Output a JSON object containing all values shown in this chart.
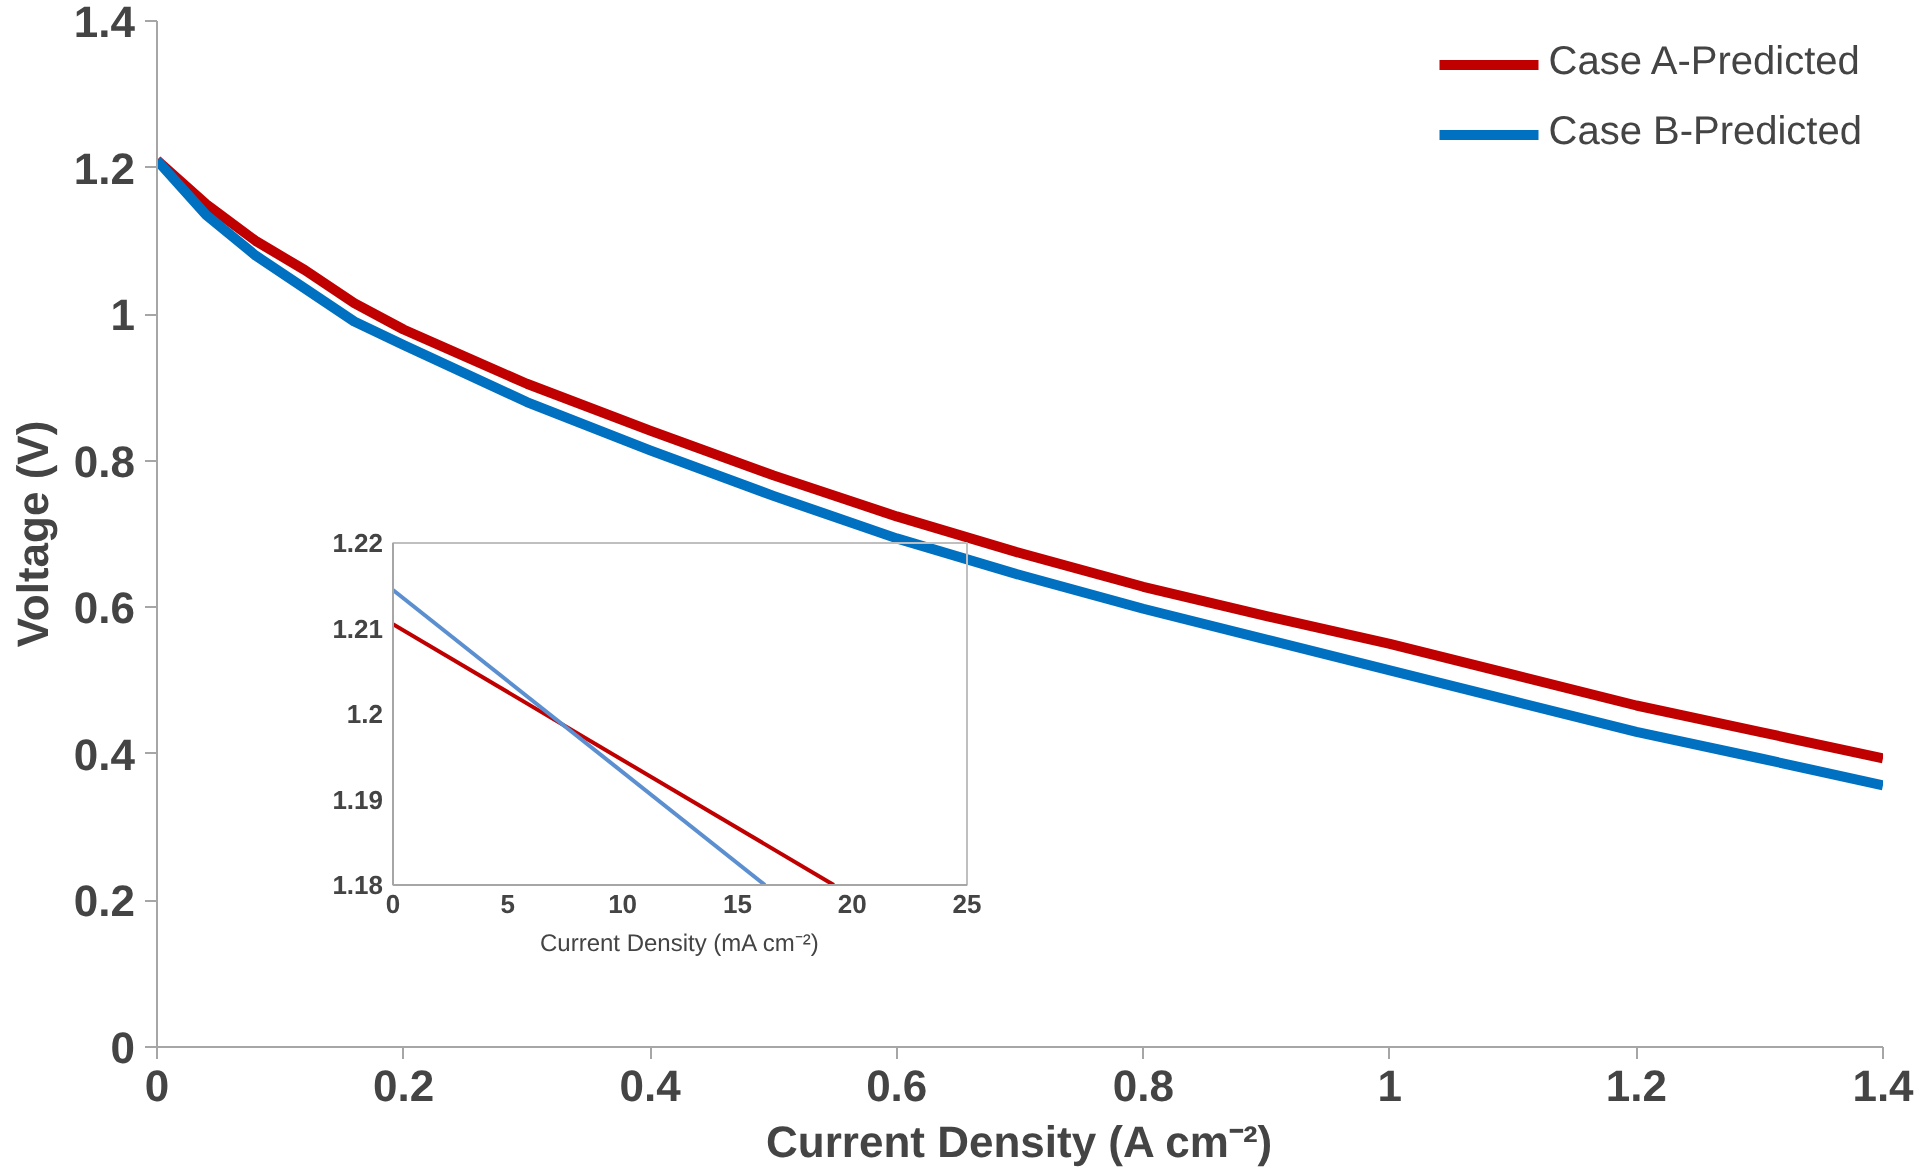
{
  "chart_data": [
    {
      "type": "line",
      "xlabel": "Current Density (A cm⁻²)",
      "ylabel": "Voltage (V)",
      "xlim": [
        0,
        1.4
      ],
      "ylim": [
        0,
        1.4
      ],
      "xticks": [
        0,
        0.2,
        0.4,
        0.6,
        0.8,
        1,
        1.2,
        1.4
      ],
      "yticks": [
        0,
        0.2,
        0.4,
        0.6,
        0.8,
        1,
        1.2,
        1.4
      ],
      "grid": false,
      "legend": "top right",
      "marker": "none",
      "line_style": "solid",
      "x": [
        0,
        0.04,
        0.08,
        0.12,
        0.16,
        0.2,
        0.3,
        0.4,
        0.5,
        0.6,
        0.7,
        0.8,
        0.9,
        1.0,
        1.1,
        1.2,
        1.3,
        1.4
      ],
      "series": [
        {
          "name": "Case A-Predicted",
          "color": "#c00000",
          "values": [
            1.21,
            1.15,
            1.1,
            1.06,
            1.015,
            0.979,
            0.905,
            0.841,
            0.78,
            0.724,
            0.674,
            0.628,
            0.588,
            0.55,
            0.508,
            0.466,
            0.43,
            0.394
          ]
        },
        {
          "name": "Case B-Predicted",
          "color": "#0070c0",
          "values": [
            1.21,
            1.135,
            1.08,
            1.035,
            0.99,
            0.958,
            0.88,
            0.814,
            0.752,
            0.694,
            0.644,
            0.598,
            0.556,
            0.514,
            0.472,
            0.43,
            0.394,
            0.357
          ]
        }
      ]
    },
    {
      "type": "line",
      "xlabel": "Current Density (mA cm⁻²)",
      "xlim": [
        0,
        25
      ],
      "ylim": [
        1.18,
        1.22
      ],
      "xticks": [
        0,
        5,
        10,
        15,
        20,
        25
      ],
      "yticks": [
        1.18,
        1.19,
        1.2,
        1.21,
        1.22
      ],
      "grid": false,
      "legend": false,
      "marker": "none",
      "line_style": "solid",
      "series": [
        {
          "color": "#c00000",
          "x": [
            0,
            19.2
          ],
          "values": [
            1.2105,
            1.18
          ]
        },
        {
          "color": "#5b8fd0",
          "x": [
            0,
            16.2
          ],
          "values": [
            1.2145,
            1.18
          ]
        }
      ]
    }
  ]
}
